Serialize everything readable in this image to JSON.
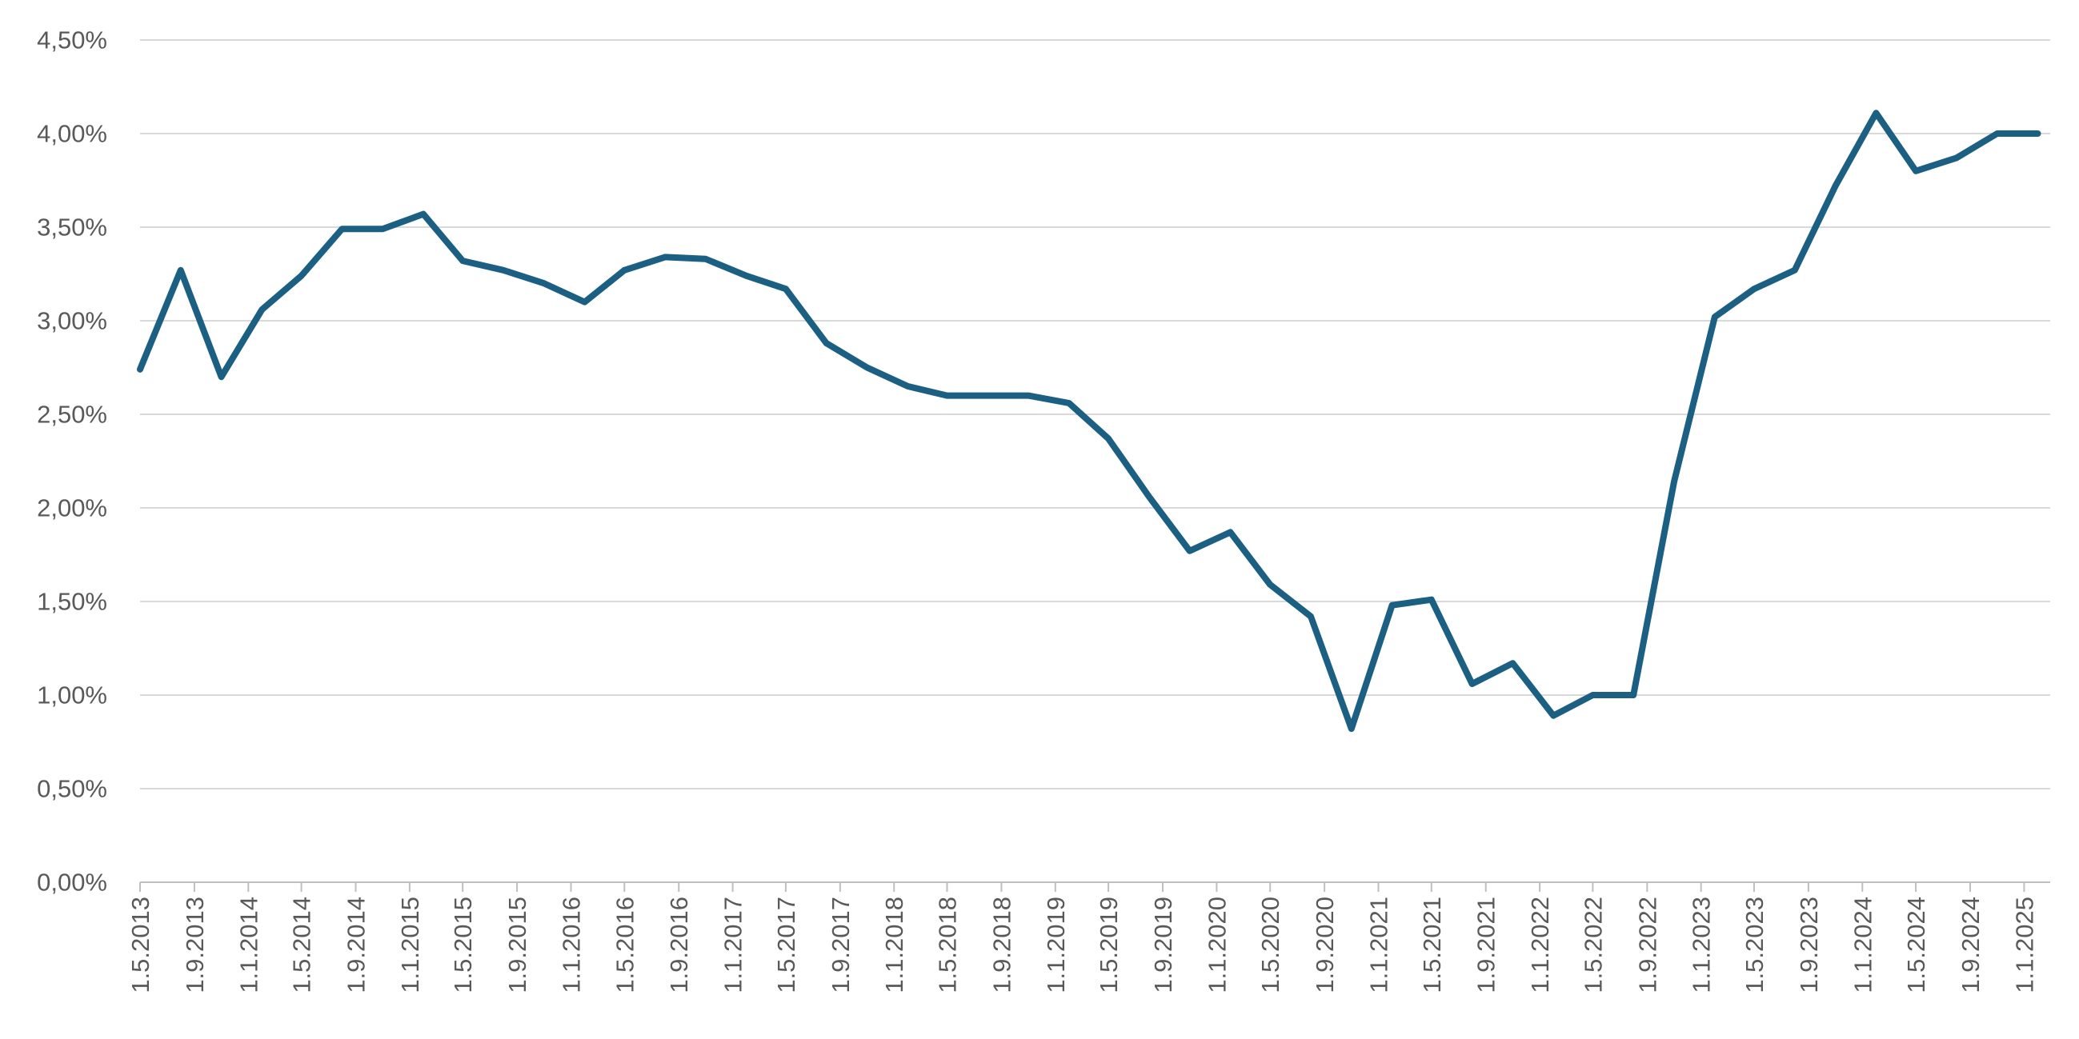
{
  "chart_data": {
    "type": "line",
    "title": "",
    "xlabel": "",
    "ylabel": "",
    "grid": true,
    "legend": "none",
    "ylim": [
      0,
      0.045
    ],
    "y_tick_values": [
      0,
      0.005,
      0.01,
      0.015,
      0.02,
      0.025,
      0.03,
      0.035,
      0.04,
      0.045
    ],
    "y_tick_labels": [
      "0,00%",
      "0,50%",
      "1,00%",
      "1,50%",
      "2,00%",
      "2,50%",
      "3,00%",
      "3,50%",
      "4,00%",
      "4,50%"
    ],
    "x_tick_labels": [
      "1.5.2013",
      "1.9.2013",
      "1.1.2014",
      "1.5.2014",
      "1.9.2014",
      "1.1.2015",
      "1.5.2015",
      "1.9.2015",
      "1.1.2016",
      "1.5.2016",
      "1.9.2016",
      "1.1.2017",
      "1.5.2017",
      "1.9.2017",
      "1.1.2018",
      "1.5.2018",
      "1.9.2018",
      "1.1.2019",
      "1.5.2019",
      "1.9.2019",
      "1.1.2020",
      "1.5.2020",
      "1.9.2020",
      "1.1.2021",
      "1.5.2021",
      "1.9.2021",
      "1.1.2022",
      "1.5.2022",
      "1.9.2022",
      "1.1.2023",
      "1.5.2023",
      "1.9.2023",
      "1.1.2024",
      "1.5.2024",
      "1.9.2024",
      "1.1.2025"
    ],
    "line_color": "#1b5f82",
    "series": [
      {
        "x": [
          "2013-05-01",
          "2013-08-01",
          "2013-11-01",
          "2014-02-01",
          "2014-05-01",
          "2014-08-01",
          "2014-11-01",
          "2015-02-01",
          "2015-05-01",
          "2015-08-01",
          "2015-11-01",
          "2016-02-01",
          "2016-05-01",
          "2016-08-01",
          "2016-11-01",
          "2017-02-01",
          "2017-05-01",
          "2017-08-01",
          "2017-11-01",
          "2018-02-01",
          "2018-05-01",
          "2018-08-01",
          "2018-11-01",
          "2019-02-01",
          "2019-05-01",
          "2019-08-01",
          "2019-11-01",
          "2020-02-01",
          "2020-05-01",
          "2020-08-01",
          "2020-11-01",
          "2021-02-01",
          "2021-05-01",
          "2021-08-01",
          "2021-11-01",
          "2022-02-01",
          "2022-05-01",
          "2022-08-01",
          "2022-11-01",
          "2023-02-01",
          "2023-05-01",
          "2023-08-01",
          "2023-11-01",
          "2024-02-01",
          "2024-05-01",
          "2024-08-01",
          "2024-11-01",
          "2025-02-01"
        ],
        "values": [
          0.0274,
          0.0327,
          0.027,
          0.0306,
          0.0324,
          0.0349,
          0.0349,
          0.0357,
          0.0332,
          0.0327,
          0.032,
          0.031,
          0.0327,
          0.0334,
          0.0333,
          0.0324,
          0.0317,
          0.0288,
          0.0275,
          0.0265,
          0.026,
          0.026,
          0.026,
          0.0256,
          0.0237,
          0.0206,
          0.0177,
          0.0187,
          0.0159,
          0.0142,
          0.0082,
          0.0148,
          0.0151,
          0.0106,
          0.0117,
          0.0089,
          0.01,
          0.01,
          0.0214,
          0.0302,
          0.0317,
          0.0327,
          0.0372,
          0.0411,
          0.038,
          0.0387,
          0.04,
          0.04
        ]
      }
    ]
  }
}
